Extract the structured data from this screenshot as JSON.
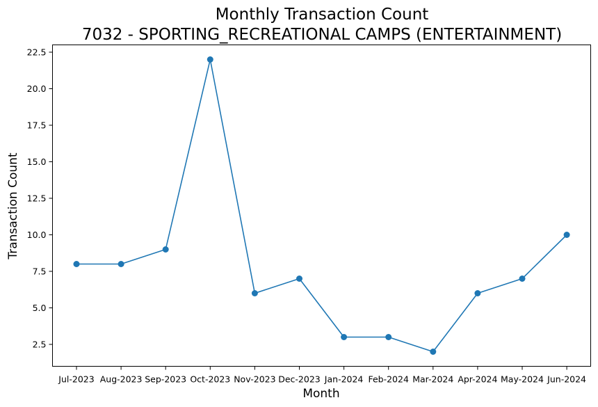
{
  "chart_data": {
    "type": "line",
    "title": "Monthly Transaction Count",
    "subtitle": "7032 - SPORTING_RECREATIONAL CAMPS (ENTERTAINMENT)",
    "xlabel": "Month",
    "ylabel": "Transaction Count",
    "categories": [
      "Jul-2023",
      "Aug-2023",
      "Sep-2023",
      "Oct-2023",
      "Nov-2023",
      "Dec-2023",
      "Jan-2024",
      "Feb-2024",
      "Mar-2024",
      "Apr-2024",
      "May-2024",
      "Jun-2024"
    ],
    "series": [
      {
        "values": [
          8,
          8,
          9,
          22,
          6,
          7,
          3,
          3,
          2,
          6,
          7,
          10
        ],
        "color": "#1f77b4"
      }
    ],
    "ylim": [
      1.0,
      23.0
    ],
    "yticks": [
      2.5,
      5.0,
      7.5,
      10.0,
      12.5,
      15.0,
      17.5,
      20.0,
      22.5
    ],
    "ytick_labels": [
      "2.5",
      "5.0",
      "7.5",
      "10.0",
      "12.5",
      "15.0",
      "17.5",
      "20.0",
      "22.5"
    ],
    "grid": false,
    "marker": "circle"
  }
}
